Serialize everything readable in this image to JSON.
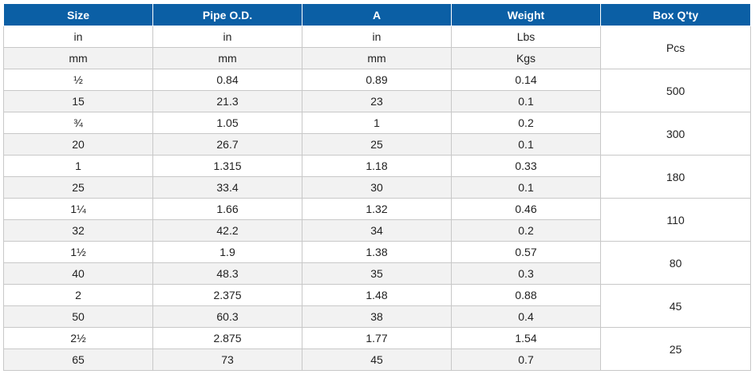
{
  "headers": [
    "Size",
    "Pipe O.D.",
    "A",
    "Weight",
    "Box Q'ty"
  ],
  "units": [
    [
      "in",
      "in",
      "in",
      "Lbs"
    ],
    [
      "mm",
      "mm",
      "mm",
      "Kgs"
    ]
  ],
  "box_unit": "Pcs",
  "groups": [
    {
      "rows": [
        [
          "½",
          "0.84",
          "0.89",
          "0.14"
        ],
        [
          "15",
          "21.3",
          "23",
          "0.1"
        ]
      ],
      "box": "500"
    },
    {
      "rows": [
        [
          "¾",
          "1.05",
          "1",
          "0.2"
        ],
        [
          "20",
          "26.7",
          "25",
          "0.1"
        ]
      ],
      "box": "300"
    },
    {
      "rows": [
        [
          "1",
          "1.315",
          "1.18",
          "0.33"
        ],
        [
          "25",
          "33.4",
          "30",
          "0.1"
        ]
      ],
      "box": "180"
    },
    {
      "rows": [
        [
          "1¼",
          "1.66",
          "1.32",
          "0.46"
        ],
        [
          "32",
          "42.2",
          "34",
          "0.2"
        ]
      ],
      "box": "110"
    },
    {
      "rows": [
        [
          "1½",
          "1.9",
          "1.38",
          "0.57"
        ],
        [
          "40",
          "48.3",
          "35",
          "0.3"
        ]
      ],
      "box": "80"
    },
    {
      "rows": [
        [
          "2",
          "2.375",
          "1.48",
          "0.88"
        ],
        [
          "50",
          "60.3",
          "38",
          "0.4"
        ]
      ],
      "box": "45"
    },
    {
      "rows": [
        [
          "2½",
          "2.875",
          "1.77",
          "1.54"
        ],
        [
          "65",
          "73",
          "45",
          "0.7"
        ]
      ],
      "box": "25"
    }
  ]
}
